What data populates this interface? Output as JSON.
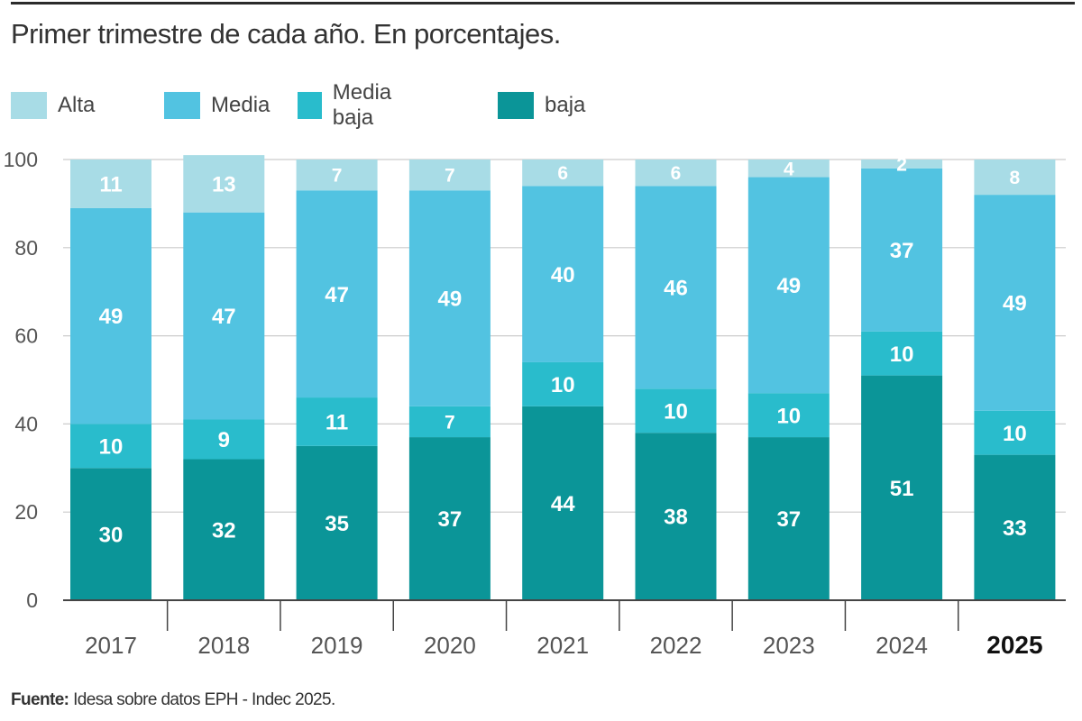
{
  "title": "Primer trimestre de cada año. En porcentajes.",
  "source": {
    "label": "Fuente:",
    "text": "Idesa sobre datos EPH - Indec 2025."
  },
  "colors": {
    "alta": "#a8dce6",
    "media": "#52c3e1",
    "media_baja": "#29bccc",
    "baja": "#0b9598",
    "grid": "#cccccc",
    "axis": "#444444",
    "label_text": "#ffffff"
  },
  "chart_data": {
    "type": "bar",
    "stacked": true,
    "title": "Primer trimestre de cada año. En porcentajes.",
    "xlabel": "",
    "ylabel": "",
    "ylim": [
      0,
      100
    ],
    "yticks": [
      "0",
      "20",
      "40",
      "60",
      "80",
      "100"
    ],
    "categories": [
      "2017",
      "2018",
      "2019",
      "2020",
      "2021",
      "2022",
      "2023",
      "2024",
      "2025"
    ],
    "highlight_category": "2025",
    "legend_position": "top-left",
    "series": [
      {
        "name": "baja",
        "key": "baja",
        "values": [
          30,
          32,
          35,
          37,
          44,
          38,
          37,
          51,
          33
        ]
      },
      {
        "name": "Media baja",
        "key": "media_baja",
        "values": [
          10,
          9,
          11,
          7,
          10,
          10,
          10,
          10,
          10
        ]
      },
      {
        "name": "Media",
        "key": "media",
        "values": [
          49,
          47,
          47,
          49,
          40,
          46,
          49,
          37,
          49
        ]
      },
      {
        "name": "Alta",
        "key": "alta",
        "values": [
          11,
          13,
          7,
          7,
          6,
          6,
          4,
          2,
          8
        ]
      }
    ],
    "legend_order": [
      "Alta",
      "Media",
      "Media baja",
      "baja"
    ]
  }
}
